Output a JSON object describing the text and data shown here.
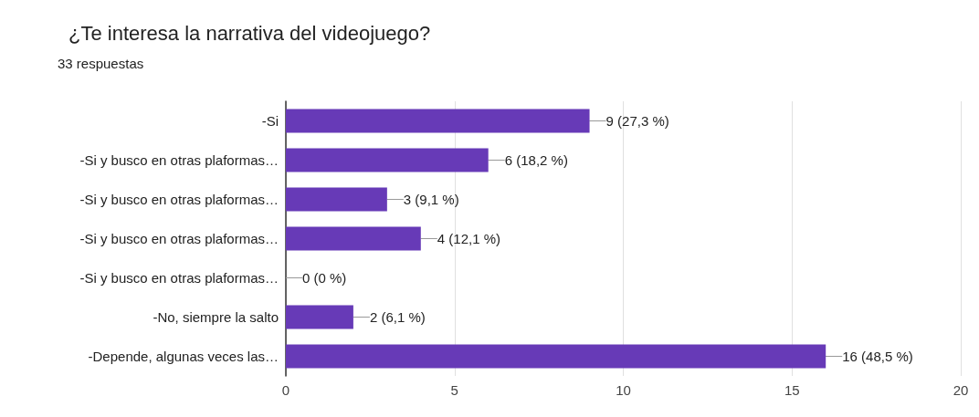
{
  "chart_data": {
    "type": "bar",
    "orientation": "horizontal",
    "title": "¿Te interesa la narrativa del videojuego?",
    "subtitle": "33 respuestas",
    "categories": [
      "-Si",
      "-Si y busco en otras plaformas…",
      "-Si y busco en otras plaformas…",
      "-Si y busco en otras plaformas…",
      "-Si y busco en otras plaformas…",
      "-No, siempre la salto",
      "-Depende, algunas veces las…"
    ],
    "values": [
      9,
      6,
      3,
      4,
      0,
      2,
      16
    ],
    "value_labels": [
      "9 (27,3 %)",
      "6 (18,2 %)",
      "3 (9,1 %)",
      "4 (12,1 %)",
      "0 (0 %)",
      "2 (6,1 %)",
      "16 (48,5 %)"
    ],
    "color": "#673ab7",
    "xlim": [
      0,
      20
    ],
    "xticks": [
      0,
      5,
      10,
      15,
      20
    ],
    "grid": "x"
  }
}
